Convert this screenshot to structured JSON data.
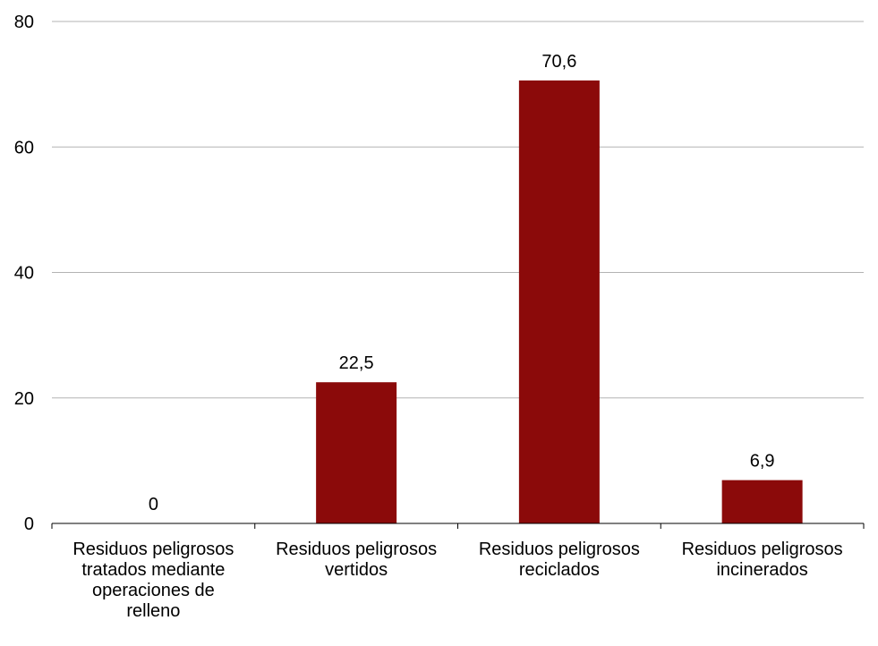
{
  "chart_data": {
    "type": "bar",
    "categories": [
      "Residuos peligrosos tratados mediante operaciones de relleno",
      "Residuos peligrosos vertidos",
      "Residuos peligrosos reciclados",
      "Residuos peligrosos incinerados"
    ],
    "category_lines": [
      [
        "Residuos peligrosos",
        "tratados mediante",
        "operaciones de",
        "relleno"
      ],
      [
        "Residuos peligrosos",
        "vertidos"
      ],
      [
        "Residuos peligrosos",
        "reciclados"
      ],
      [
        "Residuos peligrosos",
        "incinerados"
      ]
    ],
    "values": [
      0,
      22.5,
      70.6,
      6.9
    ],
    "data_labels": [
      "0",
      "22,5",
      "70,6",
      "6,9"
    ],
    "y_ticks": [
      0,
      20,
      40,
      60,
      80
    ],
    "y_tick_labels": [
      "0",
      "20",
      "40",
      "60",
      "80"
    ],
    "ylim": [
      0,
      80
    ],
    "title": "",
    "xlabel": "",
    "ylabel": "",
    "grid": true,
    "legend": "none",
    "colors": {
      "bar": "#8b0a0a",
      "grid": "#b3b3b3",
      "axis": "#000000"
    }
  }
}
